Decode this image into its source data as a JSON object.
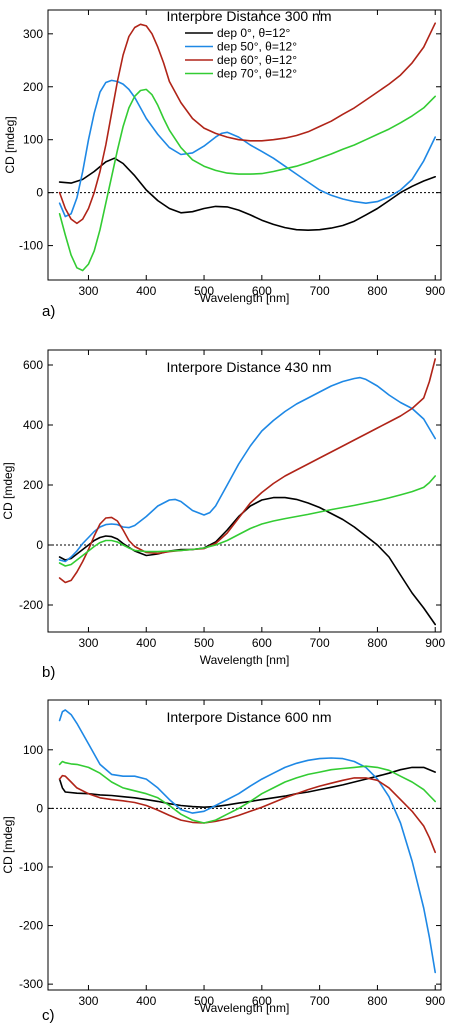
{
  "colors": {
    "dep0": "#000000",
    "dep50": "#1e88e5",
    "dep60": "#b02418",
    "dep70": "#33cc33"
  },
  "chart_data": [
    {
      "type": "line",
      "panel": "a)",
      "title": "Interpore Distance 300 nm",
      "xlabel": "Wavelength [nm]",
      "ylabel": "CD [mdeg]",
      "xlim": [
        230,
        910
      ],
      "ylim": [
        -165,
        345
      ],
      "xticks": [
        300,
        400,
        500,
        600,
        700,
        800,
        900
      ],
      "yticks": [
        -100,
        0,
        100,
        200,
        300
      ],
      "zero_line": true,
      "legend": "top-right",
      "series": [
        {
          "name": "dep 0°, θ=12°",
          "color": "#000000",
          "x": [
            250,
            270,
            290,
            310,
            330,
            345,
            360,
            380,
            400,
            420,
            440,
            460,
            480,
            500,
            520,
            540,
            560,
            580,
            600,
            620,
            640,
            660,
            680,
            700,
            720,
            740,
            760,
            780,
            800,
            820,
            840,
            860,
            880,
            900
          ],
          "y": [
            20,
            18,
            25,
            40,
            58,
            65,
            55,
            32,
            5,
            -15,
            -30,
            -38,
            -36,
            -30,
            -26,
            -27,
            -33,
            -42,
            -52,
            -60,
            -66,
            -70,
            -71,
            -70,
            -67,
            -62,
            -54,
            -42,
            -30,
            -15,
            0,
            12,
            22,
            30
          ]
        },
        {
          "name": "dep 50°, θ=12°",
          "color": "#1e88e5",
          "x": [
            250,
            260,
            270,
            280,
            290,
            300,
            310,
            320,
            330,
            340,
            350,
            360,
            370,
            380,
            390,
            400,
            420,
            440,
            460,
            480,
            500,
            520,
            530,
            540,
            560,
            580,
            600,
            620,
            640,
            660,
            680,
            700,
            720,
            740,
            760,
            780,
            800,
            820,
            840,
            860,
            880,
            900
          ],
          "y": [
            -20,
            -45,
            -40,
            -10,
            40,
            100,
            150,
            190,
            208,
            212,
            210,
            205,
            195,
            180,
            160,
            140,
            110,
            85,
            72,
            75,
            88,
            105,
            112,
            114,
            105,
            90,
            78,
            65,
            50,
            35,
            20,
            5,
            -5,
            -12,
            -17,
            -20,
            -17,
            -8,
            5,
            25,
            60,
            105
          ]
        },
        {
          "name": "dep 60°, θ=12°",
          "color": "#b02418",
          "x": [
            250,
            260,
            270,
            280,
            290,
            300,
            310,
            320,
            330,
            340,
            350,
            360,
            370,
            380,
            390,
            400,
            410,
            420,
            430,
            440,
            460,
            480,
            500,
            520,
            540,
            560,
            580,
            600,
            620,
            640,
            660,
            680,
            700,
            720,
            740,
            760,
            780,
            800,
            820,
            840,
            860,
            880,
            900
          ],
          "y": [
            0,
            -30,
            -50,
            -58,
            -50,
            -30,
            0,
            40,
            90,
            150,
            210,
            260,
            295,
            312,
            318,
            315,
            300,
            275,
            245,
            210,
            170,
            140,
            122,
            112,
            105,
            100,
            98,
            98,
            100,
            103,
            108,
            115,
            125,
            135,
            148,
            160,
            175,
            190,
            205,
            222,
            245,
            275,
            320
          ]
        },
        {
          "name": "dep 70°, θ=12°",
          "color": "#33cc33",
          "x": [
            250,
            260,
            270,
            280,
            290,
            300,
            310,
            320,
            330,
            340,
            350,
            360,
            370,
            380,
            390,
            400,
            410,
            420,
            430,
            440,
            460,
            480,
            500,
            520,
            540,
            560,
            580,
            600,
            620,
            640,
            660,
            680,
            700,
            720,
            740,
            760,
            780,
            800,
            820,
            840,
            860,
            880,
            900
          ],
          "y": [
            -40,
            -80,
            -118,
            -142,
            -147,
            -135,
            -110,
            -70,
            -20,
            30,
            80,
            125,
            160,
            182,
            193,
            195,
            185,
            165,
            140,
            118,
            85,
            62,
            50,
            42,
            37,
            35,
            35,
            36,
            40,
            45,
            50,
            57,
            65,
            73,
            82,
            90,
            100,
            110,
            120,
            132,
            145,
            160,
            182
          ]
        }
      ]
    },
    {
      "type": "line",
      "panel": "b)",
      "title": "Interpore Distance 430 nm",
      "xlabel": "Wavelength [nm]",
      "ylabel": "CD [mdeg]",
      "xlim": [
        230,
        910
      ],
      "ylim": [
        -290,
        650
      ],
      "xticks": [
        300,
        400,
        500,
        600,
        700,
        800,
        900
      ],
      "yticks": [
        -200,
        0,
        200,
        400,
        600
      ],
      "zero_line": true,
      "series": [
        {
          "name": "dep 0°",
          "color": "#000000",
          "x": [
            250,
            260,
            270,
            280,
            290,
            300,
            310,
            320,
            330,
            340,
            350,
            360,
            380,
            400,
            420,
            440,
            460,
            480,
            500,
            520,
            540,
            560,
            580,
            600,
            620,
            640,
            660,
            680,
            700,
            720,
            740,
            760,
            780,
            800,
            820,
            840,
            860,
            880,
            900
          ],
          "y": [
            -40,
            -50,
            -45,
            -30,
            -15,
            0,
            15,
            25,
            30,
            28,
            20,
            5,
            -20,
            -35,
            -30,
            -20,
            -15,
            -15,
            -10,
            10,
            50,
            95,
            130,
            150,
            158,
            158,
            152,
            140,
            125,
            105,
            85,
            60,
            30,
            0,
            -40,
            -100,
            -160,
            -210,
            -265
          ]
        },
        {
          "name": "dep 50°",
          "color": "#1e88e5",
          "x": [
            250,
            260,
            270,
            280,
            290,
            300,
            310,
            320,
            330,
            340,
            350,
            360,
            370,
            380,
            400,
            420,
            440,
            450,
            460,
            480,
            500,
            510,
            520,
            540,
            560,
            580,
            600,
            620,
            640,
            660,
            680,
            700,
            720,
            740,
            760,
            770,
            780,
            800,
            820,
            840,
            860,
            880,
            900
          ],
          "y": [
            -50,
            -55,
            -40,
            -20,
            5,
            25,
            45,
            60,
            68,
            70,
            68,
            60,
            58,
            65,
            95,
            130,
            150,
            152,
            145,
            115,
            100,
            108,
            130,
            200,
            270,
            330,
            380,
            415,
            445,
            470,
            490,
            510,
            530,
            545,
            555,
            558,
            552,
            530,
            500,
            475,
            455,
            420,
            355
          ]
        },
        {
          "name": "dep 60°",
          "color": "#b02418",
          "x": [
            250,
            260,
            270,
            280,
            290,
            300,
            310,
            320,
            330,
            340,
            350,
            360,
            370,
            380,
            400,
            420,
            440,
            460,
            480,
            500,
            520,
            540,
            560,
            580,
            600,
            620,
            640,
            660,
            680,
            700,
            720,
            740,
            760,
            780,
            800,
            820,
            840,
            860,
            880,
            890,
            900
          ],
          "y": [
            -110,
            -125,
            -118,
            -90,
            -55,
            -15,
            30,
            70,
            90,
            92,
            80,
            50,
            15,
            -5,
            -25,
            -28,
            -22,
            -18,
            -15,
            -12,
            5,
            40,
            90,
            140,
            175,
            205,
            230,
            250,
            270,
            290,
            310,
            330,
            350,
            370,
            390,
            410,
            430,
            455,
            490,
            545,
            620
          ]
        },
        {
          "name": "dep 70°",
          "color": "#33cc33",
          "x": [
            250,
            260,
            270,
            280,
            290,
            300,
            310,
            320,
            330,
            340,
            350,
            360,
            370,
            380,
            400,
            420,
            440,
            460,
            480,
            500,
            520,
            540,
            560,
            580,
            600,
            620,
            640,
            660,
            680,
            700,
            720,
            740,
            760,
            780,
            800,
            820,
            840,
            860,
            880,
            890,
            900
          ],
          "y": [
            -60,
            -70,
            -65,
            -50,
            -35,
            -20,
            -5,
            8,
            15,
            15,
            10,
            0,
            -10,
            -18,
            -22,
            -22,
            -20,
            -18,
            -15,
            -10,
            0,
            15,
            35,
            55,
            70,
            80,
            88,
            95,
            102,
            110,
            118,
            125,
            132,
            140,
            148,
            157,
            167,
            178,
            192,
            208,
            230
          ]
        }
      ]
    },
    {
      "type": "line",
      "panel": "c)",
      "title": "Interpore Distance 600 nm",
      "xlabel": "Wavelength [nm]",
      "ylabel": "CD [mdeg]",
      "xlim": [
        230,
        910
      ],
      "ylim": [
        -310,
        185
      ],
      "xticks": [
        300,
        400,
        500,
        600,
        700,
        800,
        900
      ],
      "yticks": [
        -300,
        -200,
        -100,
        0,
        100
      ],
      "zero_line": true,
      "series": [
        {
          "name": "dep 0°",
          "color": "#000000",
          "x": [
            250,
            255,
            260,
            280,
            300,
            320,
            340,
            360,
            380,
            400,
            420,
            440,
            460,
            480,
            500,
            520,
            540,
            560,
            580,
            600,
            620,
            640,
            660,
            680,
            700,
            720,
            740,
            760,
            780,
            800,
            820,
            840,
            860,
            880,
            900
          ],
          "y": [
            50,
            35,
            28,
            26,
            25,
            23,
            22,
            20,
            18,
            15,
            12,
            8,
            5,
            3,
            2,
            3,
            6,
            9,
            12,
            15,
            18,
            21,
            25,
            28,
            32,
            36,
            40,
            45,
            50,
            55,
            60,
            66,
            70,
            70,
            62
          ]
        },
        {
          "name": "dep 50°",
          "color": "#1e88e5",
          "x": [
            250,
            255,
            260,
            270,
            280,
            300,
            320,
            340,
            360,
            380,
            400,
            420,
            440,
            460,
            480,
            500,
            520,
            540,
            560,
            580,
            600,
            620,
            640,
            660,
            680,
            700,
            720,
            740,
            760,
            780,
            800,
            820,
            840,
            860,
            880,
            890,
            900
          ],
          "y": [
            150,
            165,
            168,
            160,
            145,
            110,
            75,
            58,
            55,
            55,
            50,
            35,
            15,
            -2,
            -8,
            -5,
            5,
            15,
            25,
            38,
            50,
            60,
            70,
            77,
            82,
            85,
            86,
            85,
            80,
            70,
            50,
            20,
            -25,
            -90,
            -170,
            -220,
            -280
          ]
        },
        {
          "name": "dep 60°",
          "color": "#b02418",
          "x": [
            250,
            255,
            260,
            270,
            280,
            300,
            320,
            340,
            360,
            380,
            400,
            420,
            440,
            460,
            480,
            500,
            520,
            540,
            560,
            580,
            600,
            620,
            640,
            660,
            680,
            700,
            720,
            740,
            760,
            780,
            800,
            820,
            840,
            860,
            880,
            890,
            900
          ],
          "y": [
            50,
            56,
            55,
            45,
            35,
            25,
            18,
            15,
            13,
            10,
            5,
            -3,
            -12,
            -20,
            -24,
            -25,
            -22,
            -18,
            -12,
            -5,
            2,
            10,
            18,
            25,
            32,
            38,
            43,
            48,
            52,
            52,
            48,
            35,
            15,
            -5,
            -30,
            -50,
            -75
          ]
        },
        {
          "name": "dep 70°",
          "color": "#33cc33",
          "x": [
            250,
            255,
            260,
            270,
            280,
            300,
            320,
            340,
            360,
            380,
            400,
            420,
            440,
            460,
            480,
            500,
            520,
            540,
            560,
            580,
            600,
            620,
            640,
            660,
            680,
            700,
            720,
            740,
            760,
            780,
            800,
            820,
            840,
            860,
            880,
            890,
            900
          ],
          "y": [
            75,
            80,
            78,
            76,
            75,
            70,
            60,
            45,
            35,
            30,
            25,
            18,
            5,
            -10,
            -20,
            -25,
            -20,
            -10,
            0,
            12,
            25,
            35,
            45,
            52,
            58,
            62,
            66,
            68,
            70,
            72,
            70,
            65,
            55,
            45,
            32,
            22,
            12
          ]
        }
      ]
    }
  ]
}
